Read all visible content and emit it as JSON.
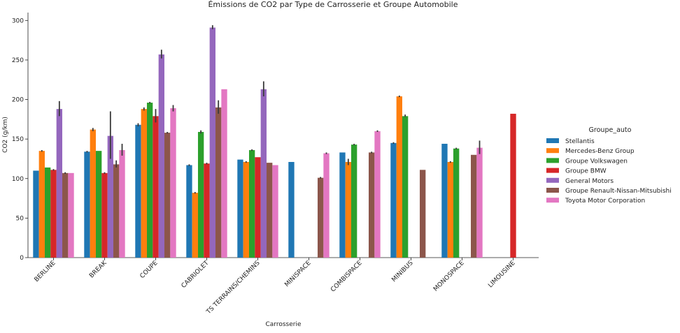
{
  "chart_data": {
    "type": "bar",
    "title": "Émissions de CO2 par Type de Carrosserie et Groupe Automobile",
    "xlabel": "Carrosserie",
    "ylabel": "CO2 (g/km)",
    "ylim": [
      0,
      310
    ],
    "yticks": [
      0,
      50,
      100,
      150,
      200,
      250,
      300
    ],
    "grid": false,
    "legend": {
      "title": "Groupe_auto",
      "position": "right"
    },
    "categories": [
      "BERLINE",
      "BREAK",
      "COUPE",
      "CABRIOLET",
      "TS TERRAINS/CHEMINS",
      "MINISPACE",
      "COMBISPACE",
      "MINIBUS",
      "MONOSPACE",
      "LIMOUSINE"
    ],
    "series": [
      {
        "name": "Stellantis",
        "color": "#1f77b4",
        "values": [
          110,
          134,
          168,
          117,
          124,
          121,
          133,
          145,
          144,
          null
        ],
        "err": [
          [
            110,
            110
          ],
          [
            133,
            135
          ],
          [
            166,
            170
          ],
          [
            116,
            118
          ],
          [
            124,
            124
          ],
          [
            121,
            121
          ],
          [
            133,
            133
          ],
          [
            144,
            146
          ],
          [
            144,
            144
          ],
          null
        ]
      },
      {
        "name": "Mercedes-Benz Group",
        "color": "#ff7f0e",
        "values": [
          135,
          162,
          188,
          82,
          121,
          null,
          121,
          204,
          121,
          null
        ],
        "err": [
          [
            134,
            136
          ],
          [
            160,
            164
          ],
          [
            186,
            190
          ],
          [
            81,
            83
          ],
          [
            120,
            122
          ],
          null,
          [
            117,
            125
          ],
          [
            203,
            205
          ],
          [
            120,
            122
          ],
          null
        ]
      },
      {
        "name": "Groupe Volkswagen",
        "color": "#2ca02c",
        "values": [
          114,
          135,
          196,
          159,
          136,
          null,
          143,
          179,
          138,
          null
        ],
        "err": [
          [
            114,
            114
          ],
          [
            135,
            135
          ],
          [
            195,
            197
          ],
          [
            157,
            161
          ],
          [
            135,
            137
          ],
          null,
          [
            142,
            144
          ],
          [
            178,
            181
          ],
          [
            137,
            139
          ],
          null
        ]
      },
      {
        "name": "Groupe BMW",
        "color": "#d62728",
        "values": [
          111,
          107,
          179,
          119,
          127,
          null,
          null,
          null,
          null,
          182
        ],
        "err": [
          [
            110,
            112
          ],
          [
            106,
            108
          ],
          [
            171,
            188
          ],
          [
            118,
            120
          ],
          [
            127,
            127
          ],
          null,
          null,
          null,
          null,
          [
            182,
            182
          ]
        ]
      },
      {
        "name": "General Motors",
        "color": "#9467bd",
        "values": [
          188,
          154,
          257,
          291,
          213,
          null,
          null,
          null,
          null,
          null
        ],
        "err": [
          [
            179,
            198
          ],
          [
            125,
            185
          ],
          [
            252,
            263
          ],
          [
            289,
            294
          ],
          [
            204,
            223
          ],
          null,
          null,
          null,
          null,
          null
        ]
      },
      {
        "name": "Groupe Renault-Nissan-Mitsubishi",
        "color": "#8c564b",
        "values": [
          107,
          118,
          158,
          190,
          120,
          101,
          133,
          111,
          130,
          null
        ],
        "err": [
          [
            106,
            108
          ],
          [
            114,
            123
          ],
          [
            157,
            159
          ],
          [
            182,
            199
          ],
          [
            120,
            120
          ],
          [
            100,
            102
          ],
          [
            132,
            134
          ],
          [
            111,
            111
          ],
          [
            130,
            130
          ],
          null
        ]
      },
      {
        "name": "Toyota Motor Corporation",
        "color": "#e377c2",
        "values": [
          107,
          136,
          189,
          213,
          117,
          132,
          160,
          null,
          139,
          null
        ],
        "err": [
          [
            107,
            107
          ],
          [
            129,
            144
          ],
          [
            185,
            193
          ],
          [
            213,
            213
          ],
          [
            117,
            117
          ],
          [
            131,
            133
          ],
          [
            159,
            161
          ],
          null,
          [
            131,
            148
          ],
          null
        ]
      }
    ]
  }
}
